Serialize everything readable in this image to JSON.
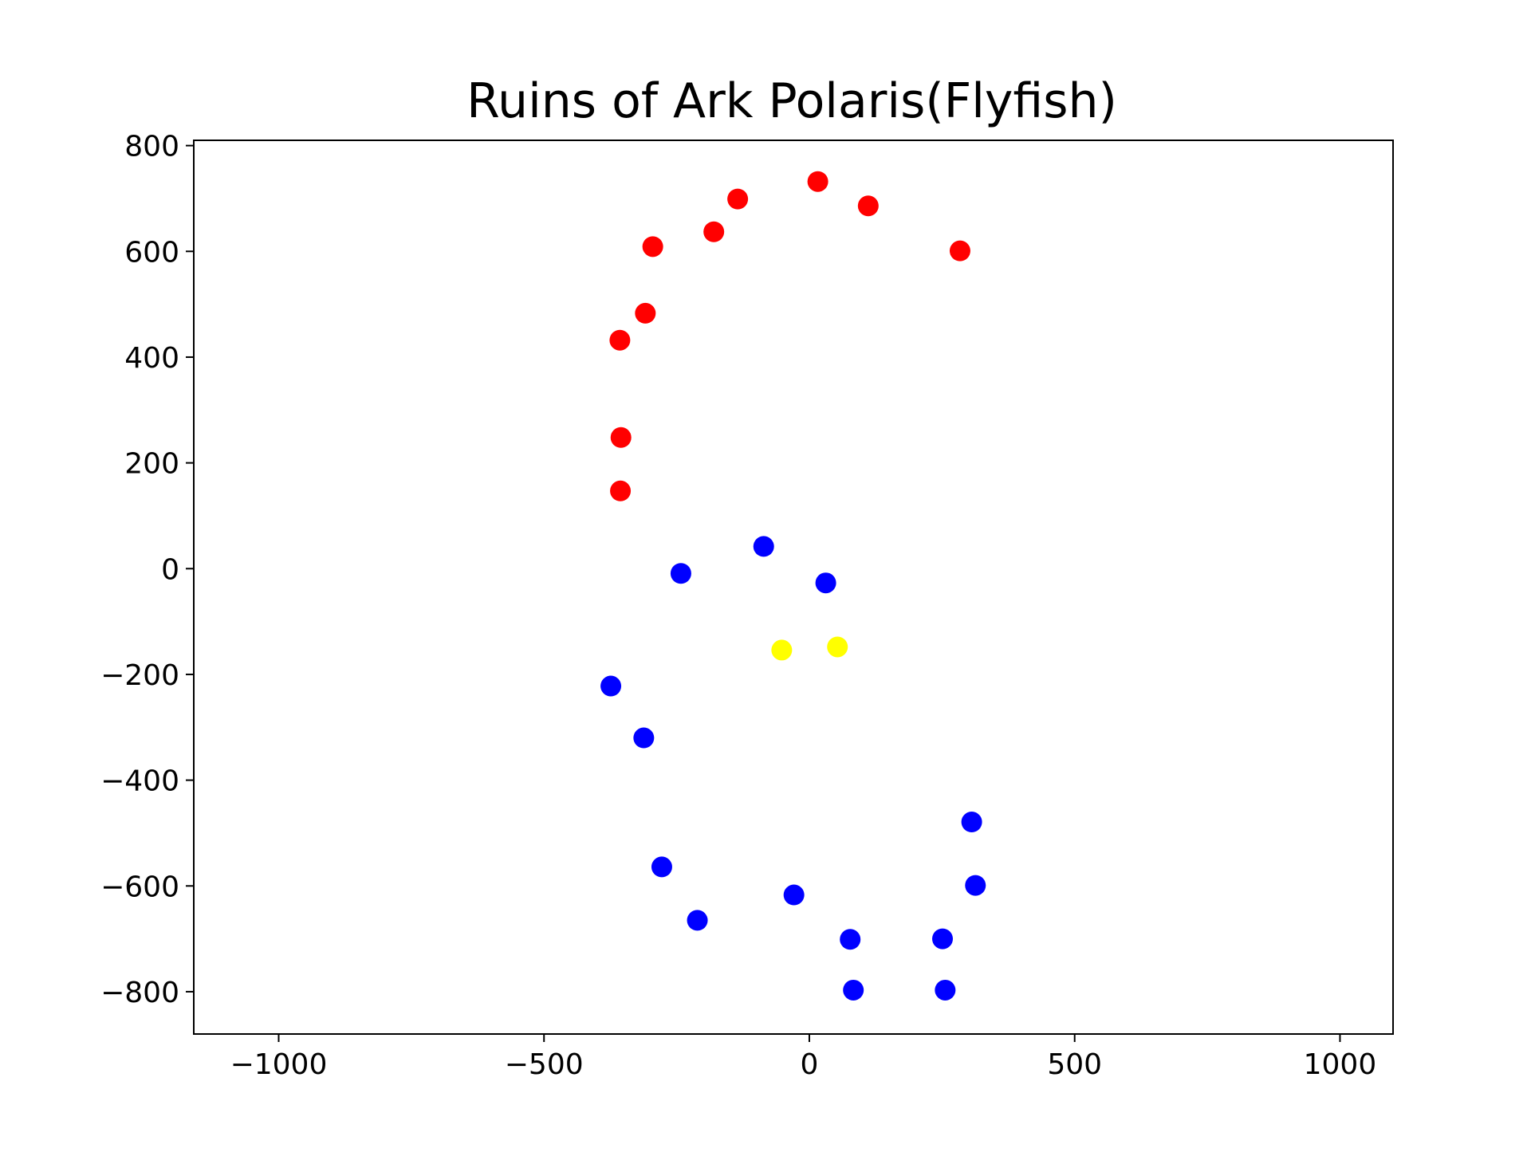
{
  "chart_data": {
    "type": "scatter",
    "title": "Ruins of Ark Polaris(Flyfish)",
    "xlabel": "",
    "ylabel": "",
    "xlim": [
      -1160,
      1100
    ],
    "ylim": [
      -880,
      810
    ],
    "xticks": [
      -1000,
      -500,
      0,
      500,
      1000
    ],
    "yticks": [
      800,
      600,
      400,
      200,
      0,
      -200,
      -400,
      -600,
      -800
    ],
    "xtick_labels": [
      "−1000",
      "−500",
      "0",
      "500",
      "1000"
    ],
    "ytick_labels": [
      "800",
      "600",
      "400",
      "200",
      "0",
      "−200",
      "−400",
      "−600",
      "−800"
    ],
    "grid": false,
    "series": [
      {
        "color": "#ff0000",
        "points": [
          [
            16,
            732
          ],
          [
            111,
            686
          ],
          [
            -135,
            699
          ],
          [
            -180,
            637
          ],
          [
            -295,
            609
          ],
          [
            284,
            601
          ],
          [
            -309,
            483
          ],
          [
            -357,
            432
          ],
          [
            -355,
            248
          ],
          [
            -356,
            147
          ]
        ]
      },
      {
        "color": "#0000ff",
        "points": [
          [
            -86,
            42
          ],
          [
            -242,
            -9
          ],
          [
            31,
            -27
          ],
          [
            -374,
            -222
          ],
          [
            -312,
            -320
          ],
          [
            306,
            -479
          ],
          [
            -278,
            -564
          ],
          [
            313,
            -599
          ],
          [
            -29,
            -617
          ],
          [
            -211,
            -665
          ],
          [
            77,
            -701
          ],
          [
            251,
            -700
          ],
          [
            83,
            -797
          ],
          [
            256,
            -797
          ]
        ]
      },
      {
        "color": "#ffff00",
        "points": [
          [
            -52,
            -154
          ],
          [
            53,
            -148
          ]
        ]
      }
    ]
  }
}
